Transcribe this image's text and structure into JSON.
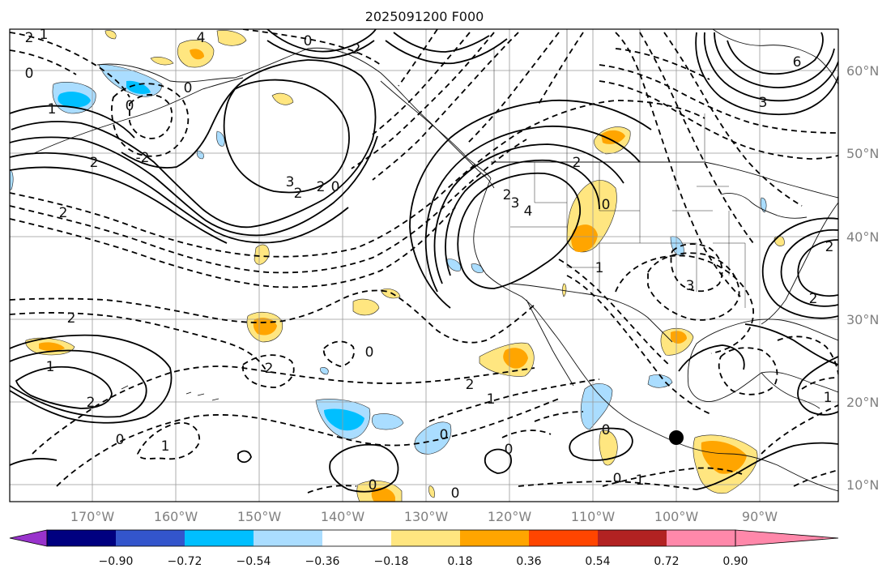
{
  "title": "2025091200 F000",
  "map": {
    "lon_labels": [
      "170°W",
      "160°W",
      "150°W",
      "140°W",
      "130°W",
      "120°W",
      "110°W",
      "100°W",
      "90°W"
    ],
    "lat_labels": [
      "60°N",
      "50°N",
      "40°N",
      "30°N",
      "20°N",
      "10°N"
    ],
    "marker": {
      "name": "location-dot",
      "lon": -100,
      "lat": 16
    }
  },
  "colorbar": {
    "colors": [
      "#9933cc",
      "#000080",
      "#3355cc",
      "#00bfff",
      "#aaddff",
      "#ffffff",
      "#ffe680",
      "#ffa500",
      "#ff4500",
      "#b22222",
      "#ff88aa"
    ],
    "tick_labels": [
      "−0.90",
      "−0.72",
      "−0.54",
      "−0.36",
      "−0.18",
      "0.18",
      "0.36",
      "0.54",
      "0.72",
      "0.90"
    ]
  },
  "contour_labels": [
    {
      "t": "2"
    },
    {
      "t": "1"
    },
    {
      "t": "0"
    },
    {
      "t": "1"
    },
    {
      "t": "0"
    },
    {
      "t": "-2"
    },
    {
      "t": "2"
    },
    {
      "t": "4"
    },
    {
      "t": "3"
    },
    {
      "t": "2"
    },
    {
      "t": "0"
    },
    {
      "t": "2"
    },
    {
      "t": "2"
    },
    {
      "t": "2"
    },
    {
      "t": "0"
    },
    {
      "t": "0"
    },
    {
      "t": "2"
    },
    {
      "t": "1"
    },
    {
      "t": "2"
    },
    {
      "t": "0"
    },
    {
      "t": "0"
    },
    {
      "t": "2"
    },
    {
      "t": "2"
    },
    {
      "t": "2"
    },
    {
      "t": "3"
    },
    {
      "t": "4"
    },
    {
      "t": "0"
    },
    {
      "t": "0"
    },
    {
      "t": "1"
    },
    {
      "t": "1"
    },
    {
      "t": "0"
    },
    {
      "t": "1"
    },
    {
      "t": "0"
    },
    {
      "t": "0"
    },
    {
      "t": "0"
    },
    {
      "t": "0"
    },
    {
      "t": "1"
    },
    {
      "t": "6"
    },
    {
      "t": "3"
    },
    {
      "t": "2"
    },
    {
      "t": "2"
    },
    {
      "t": "2"
    },
    {
      "t": "1"
    },
    {
      "t": "3"
    }
  ]
}
